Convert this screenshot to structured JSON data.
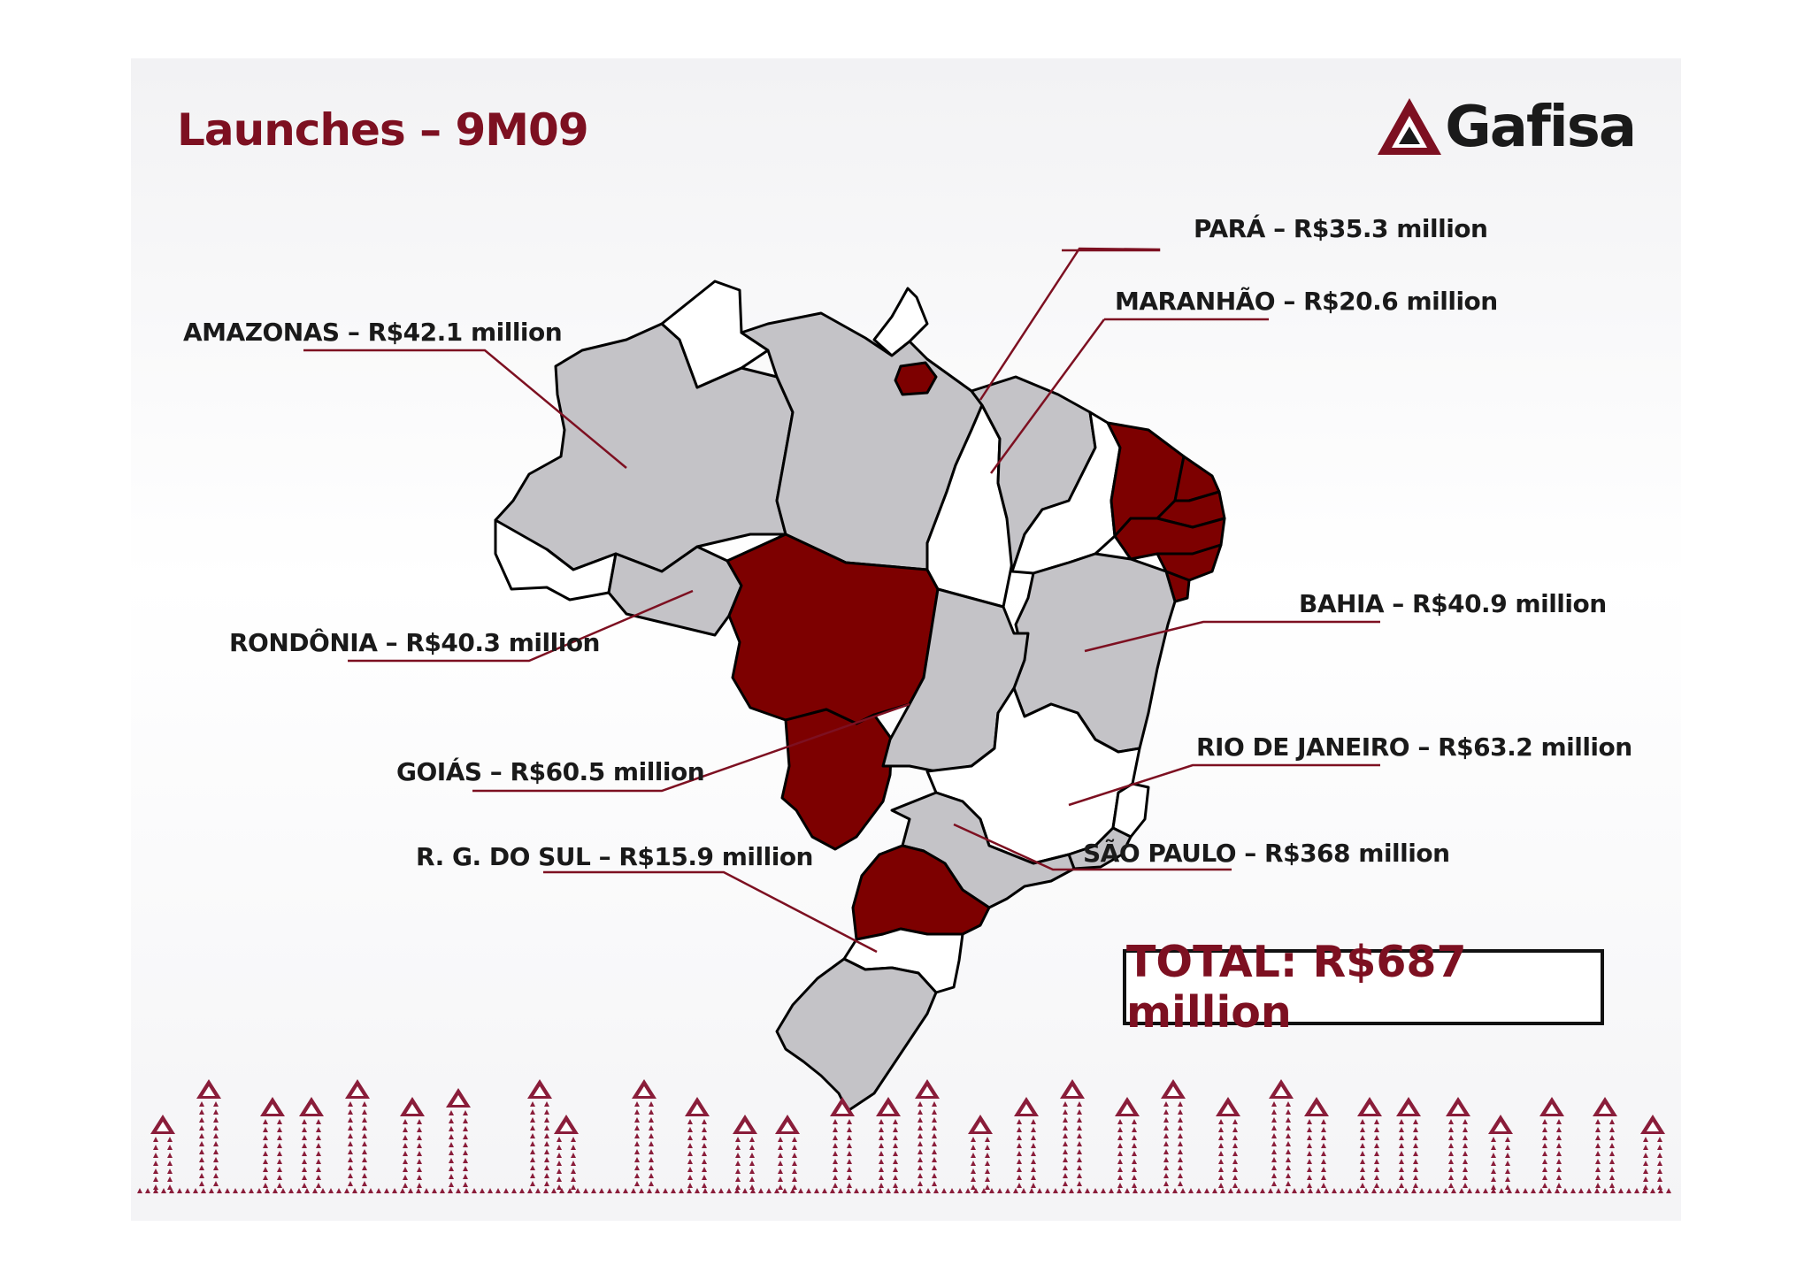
{
  "title": "Launches – 9M09",
  "logo": {
    "name": "Gafisa",
    "icon": "gafisa-triangle-icon"
  },
  "colors": {
    "accent": "#7d1021",
    "highlight_state": "#7d0000",
    "gray_state": "#c4c3c7",
    "white_state": "#ffffff"
  },
  "labels": {
    "para": {
      "state": "PARÁ",
      "value": "R$35.3 million"
    },
    "maranhao": {
      "state": "MARANHÃO",
      "value": "R$20.6 million"
    },
    "amazonas": {
      "state": "AMAZONAS",
      "value": "R$42.1 million"
    },
    "bahia": {
      "state": "BAHIA",
      "value": "R$40.9 million"
    },
    "rondonia": {
      "state": "RONDÔNIA",
      "value": "R$40.3 million"
    },
    "rio": {
      "state": "RIO DE JANEIRO",
      "value": "R$63.2 million"
    },
    "goias": {
      "state": "GOIÁS",
      "value": "R$60.5 million"
    },
    "saopaulo": {
      "state": "SÃO PAULO",
      "value": "R$368 million"
    },
    "rgsul": {
      "state": "R. G. DO SUL",
      "value": "R$15.9 million"
    }
  },
  "total": "TOTAL: R$687 million"
}
